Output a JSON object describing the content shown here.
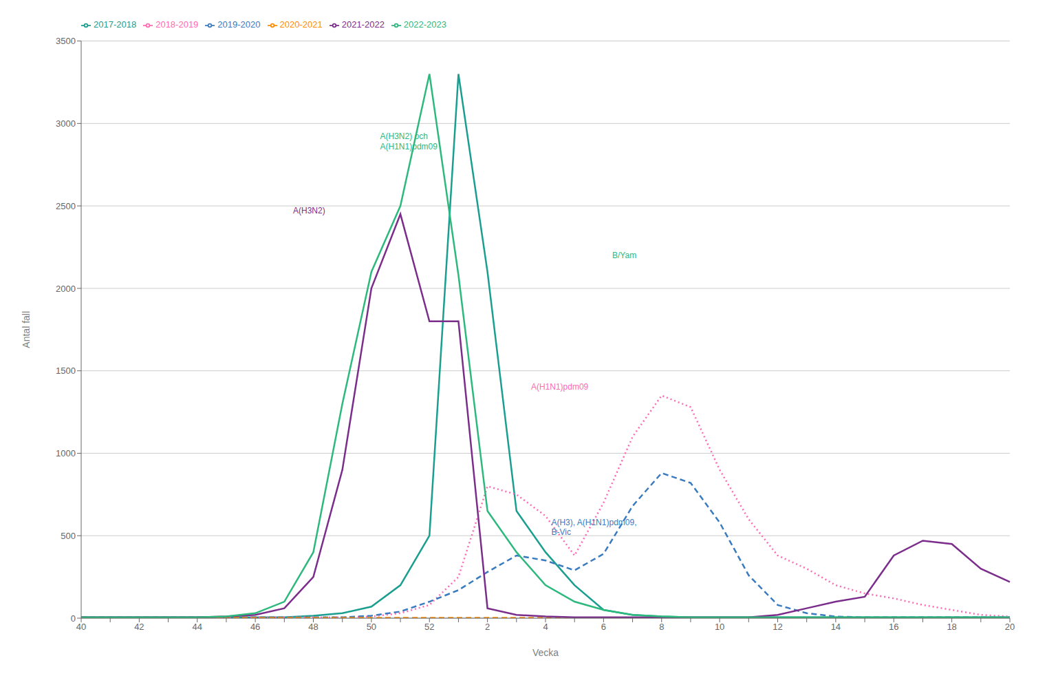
{
  "chart_data": {
    "type": "line",
    "xlabel": "Vecka",
    "ylabel": "Antal fall",
    "categories": [
      "40",
      null,
      "42",
      null,
      "44",
      null,
      "46",
      null,
      "48",
      null,
      "50",
      null,
      "52",
      null,
      "2",
      null,
      "4",
      null,
      "6",
      null,
      "8",
      null,
      "10",
      null,
      "12",
      null,
      "14",
      null,
      "16",
      null,
      "18",
      null,
      "20"
    ],
    "series": [
      {
        "name": "2017-2018",
        "color": "#1a9e8f",
        "line_style": "solid",
        "values": [
          5,
          5,
          5,
          5,
          5,
          5,
          5,
          5,
          15,
          30,
          70,
          200,
          500,
          3300,
          2100,
          650,
          400,
          200,
          50,
          20,
          10,
          5,
          5,
          5,
          5,
          5,
          5,
          5,
          5,
          5,
          5,
          5,
          5
        ]
      },
      {
        "name": "2018-2019",
        "color": "#ff69b4",
        "line_style": "dotted",
        "values": [
          5,
          5,
          5,
          5,
          5,
          5,
          5,
          5,
          5,
          5,
          10,
          30,
          80,
          250,
          800,
          750,
          620,
          380,
          700,
          1100,
          1350,
          1280,
          900,
          600,
          380,
          300,
          200,
          150,
          120,
          80,
          50,
          20,
          10
        ]
      },
      {
        "name": "2019-2020",
        "color": "#3a7bbf",
        "line_style": "dashed",
        "values": [
          5,
          5,
          5,
          5,
          5,
          5,
          5,
          5,
          5,
          5,
          15,
          40,
          100,
          170,
          280,
          380,
          350,
          290,
          390,
          680,
          880,
          820,
          580,
          260,
          80,
          30,
          10,
          5,
          5,
          5,
          5,
          5,
          5
        ]
      },
      {
        "name": "2020-2021",
        "color": "#ff8c00",
        "line_style": "dashed",
        "values": [
          2,
          2,
          2,
          2,
          2,
          2,
          2,
          2,
          2,
          2,
          2,
          2,
          2,
          2,
          2,
          2,
          2,
          2,
          2,
          2,
          2,
          2,
          2,
          2,
          2,
          2,
          2,
          2,
          2,
          2,
          2,
          2,
          2
        ]
      },
      {
        "name": "2021-2022",
        "color": "#7b2d8b",
        "line_style": "solid",
        "values": [
          5,
          5,
          5,
          5,
          5,
          10,
          20,
          60,
          250,
          900,
          2000,
          2450,
          1800,
          1800,
          60,
          20,
          10,
          5,
          5,
          5,
          5,
          5,
          5,
          5,
          20,
          60,
          100,
          130,
          380,
          470,
          450,
          300,
          220
        ]
      },
      {
        "name": "2022-2023",
        "color": "#2db87d",
        "line_style": "solid",
        "values": [
          5,
          5,
          5,
          5,
          5,
          10,
          30,
          100,
          400,
          1300,
          2100,
          2500,
          3300,
          2080,
          650,
          400,
          200,
          100,
          50,
          20,
          10,
          5,
          5,
          5,
          5,
          5,
          5,
          5,
          5,
          5,
          5,
          5,
          5
        ]
      }
    ],
    "ylim": [
      0,
      3500
    ],
    "yticks": [
      0,
      500,
      1000,
      1500,
      2000,
      2500,
      3000,
      3500
    ],
    "grid": true,
    "legend": "upper left",
    "annotations": [
      {
        "text": "A(H3N2) och\nA(H1N1)pdm09",
        "x": 50.3,
        "y": 2950,
        "color": "#2db87d"
      },
      {
        "text": "A(H3N2)",
        "x": 47.3,
        "y": 2500,
        "color": "#7b2d8b"
      },
      {
        "text": "B/Yam",
        "x": 6.3,
        "y": 2230,
        "color": "#2db87d"
      },
      {
        "text": "A(H1N1)pdm09",
        "x": 3.5,
        "y": 1430,
        "color": "#ff69b4"
      },
      {
        "text": "A(H3), A(H1N1)pdm09,\nB-Vic",
        "x": 4.2,
        "y": 610,
        "color": "#3a7bbf"
      }
    ]
  }
}
